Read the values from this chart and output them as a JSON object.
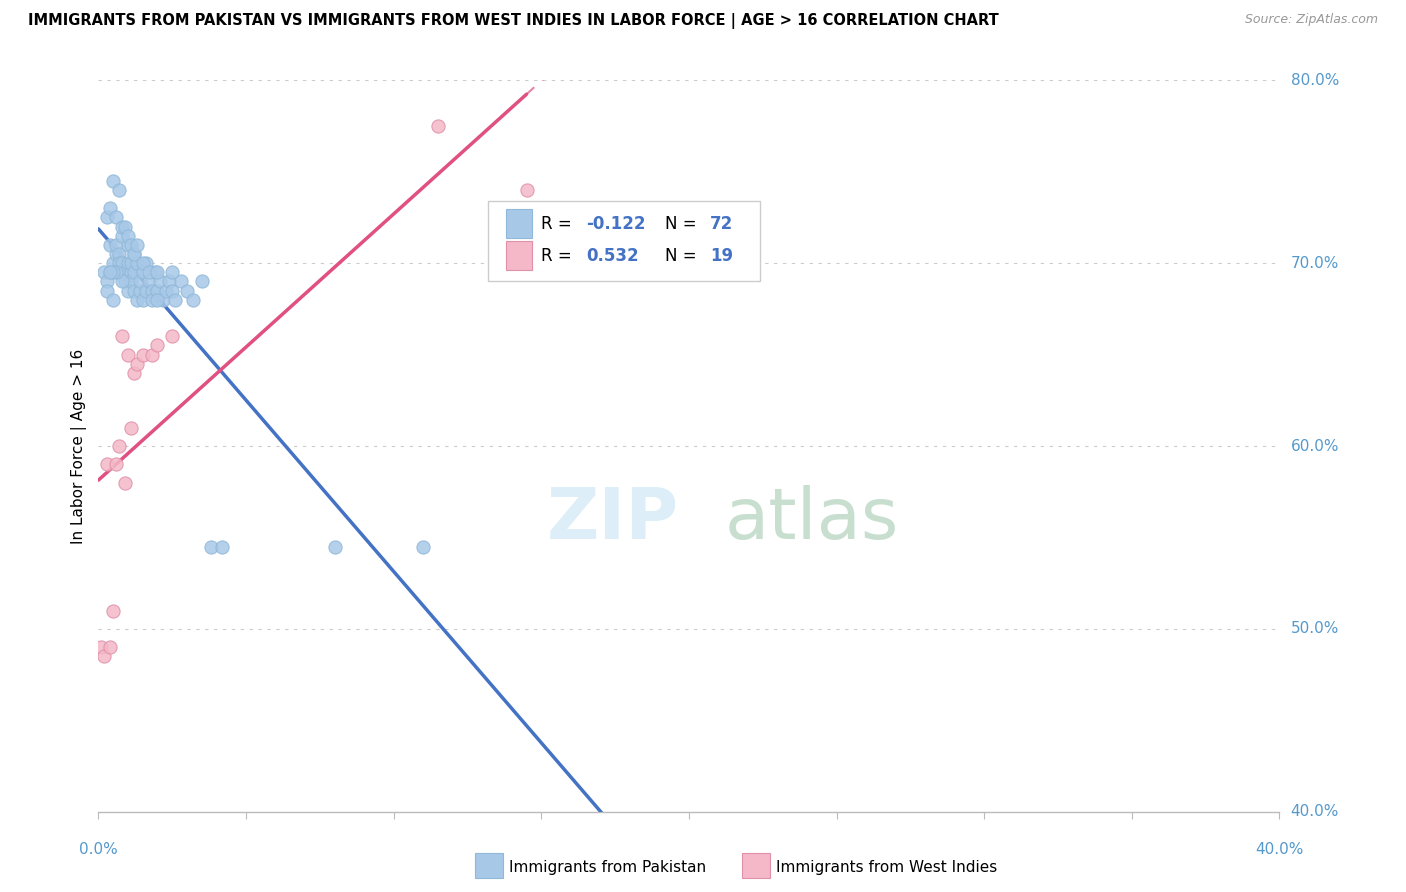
{
  "title": "IMMIGRANTS FROM PAKISTAN VS IMMIGRANTS FROM WEST INDIES IN LABOR FORCE | AGE > 16 CORRELATION CHART",
  "source": "Source: ZipAtlas.com",
  "ylabel_label": "In Labor Force | Age > 16",
  "legend_label1": "Immigrants from Pakistan",
  "legend_label2": "Immigrants from West Indies",
  "r1": "-0.122",
  "n1": "72",
  "r2": "0.532",
  "n2": "19",
  "blue_color": "#a8c8e8",
  "pink_color": "#f4b8c8",
  "blue_line_color": "#4472c4",
  "pink_line_color": "#e05080",
  "xlim": [
    0.0,
    0.4
  ],
  "ylim": [
    0.4,
    0.8
  ],
  "yticks": [
    0.4,
    0.5,
    0.6,
    0.7,
    0.8
  ],
  "ytick_labels": [
    "40.0%",
    "50.0%",
    "60.0%",
    "70.0%",
    "80.0%"
  ],
  "xtick_left_label": "0.0%",
  "xtick_right_label": "40.0%",
  "pakistan_x": [
    0.002,
    0.003,
    0.003,
    0.004,
    0.004,
    0.005,
    0.005,
    0.006,
    0.006,
    0.007,
    0.007,
    0.007,
    0.008,
    0.008,
    0.009,
    0.009,
    0.01,
    0.01,
    0.01,
    0.011,
    0.011,
    0.011,
    0.012,
    0.012,
    0.012,
    0.013,
    0.013,
    0.014,
    0.014,
    0.015,
    0.015,
    0.016,
    0.016,
    0.017,
    0.018,
    0.018,
    0.019,
    0.02,
    0.021,
    0.022,
    0.023,
    0.024,
    0.025,
    0.026,
    0.028,
    0.03,
    0.032,
    0.035,
    0.038,
    0.042,
    0.003,
    0.004,
    0.005,
    0.006,
    0.007,
    0.008,
    0.009,
    0.01,
    0.011,
    0.012,
    0.013,
    0.015,
    0.017,
    0.02,
    0.025,
    0.08,
    0.11,
    0.02,
    0.008,
    0.006,
    0.005,
    0.004
  ],
  "pakistan_y": [
    0.695,
    0.69,
    0.685,
    0.695,
    0.71,
    0.68,
    0.7,
    0.705,
    0.71,
    0.705,
    0.7,
    0.695,
    0.715,
    0.7,
    0.695,
    0.69,
    0.685,
    0.7,
    0.71,
    0.695,
    0.69,
    0.7,
    0.685,
    0.695,
    0.705,
    0.68,
    0.7,
    0.685,
    0.69,
    0.68,
    0.695,
    0.685,
    0.7,
    0.69,
    0.685,
    0.68,
    0.695,
    0.685,
    0.69,
    0.68,
    0.685,
    0.69,
    0.685,
    0.68,
    0.69,
    0.685,
    0.68,
    0.69,
    0.545,
    0.545,
    0.725,
    0.73,
    0.745,
    0.725,
    0.74,
    0.72,
    0.72,
    0.715,
    0.71,
    0.705,
    0.71,
    0.7,
    0.695,
    0.695,
    0.695,
    0.545,
    0.545,
    0.68,
    0.69,
    0.695,
    0.695,
    0.695
  ],
  "westindies_x": [
    0.001,
    0.002,
    0.003,
    0.004,
    0.005,
    0.006,
    0.007,
    0.008,
    0.009,
    0.01,
    0.011,
    0.012,
    0.013,
    0.015,
    0.018,
    0.02,
    0.025,
    0.115,
    0.145
  ],
  "westindies_y": [
    0.49,
    0.485,
    0.59,
    0.49,
    0.51,
    0.59,
    0.6,
    0.66,
    0.58,
    0.65,
    0.61,
    0.64,
    0.645,
    0.65,
    0.65,
    0.655,
    0.66,
    0.775,
    0.74
  ]
}
